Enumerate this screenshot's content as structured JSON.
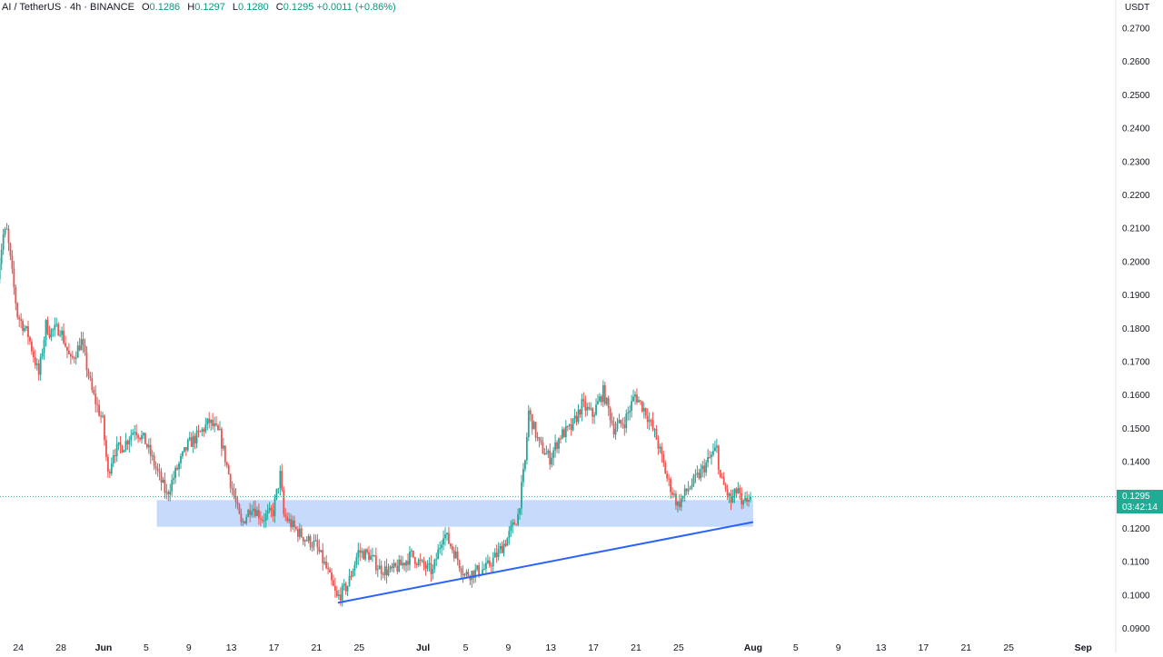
{
  "legend": {
    "symbol": "AI / TetherUS · 4h · BINANCE",
    "open_label": "O",
    "open": "0.1286",
    "high_label": "H",
    "high": "0.1297",
    "low_label": "L",
    "low": "0.1280",
    "close_label": "C",
    "close": "0.1295",
    "change": "+0.0011 (+0.86%)"
  },
  "price_scale": {
    "currency": "USDT",
    "last_price": "0.1295",
    "countdown": "03:42:14"
  },
  "colors": {
    "up": "#26a69a",
    "down": "#ef5350",
    "zone": "#bcd4fb",
    "trendline": "#2962ff",
    "last_price_tag": "#22ab94"
  },
  "chart_data": {
    "type": "candlestick",
    "symbol": "AI / TetherUS",
    "interval": "4h",
    "exchange": "BINANCE",
    "ylim": [
      0.09,
      0.275
    ],
    "y_ticks": [
      "0.2700",
      "0.2600",
      "0.2500",
      "0.2400",
      "0.2300",
      "0.2200",
      "0.2100",
      "0.2000",
      "0.1900",
      "0.1800",
      "0.1700",
      "0.1600",
      "0.1500",
      "0.1400",
      "0.1300",
      "0.1200",
      "0.1100",
      "0.1000",
      "0.0900"
    ],
    "x_ticks": [
      {
        "label": "24",
        "date": "2024-05-24"
      },
      {
        "label": "28",
        "date": "2024-05-28"
      },
      {
        "label": "Jun",
        "date": "2024-06-01"
      },
      {
        "label": "5",
        "date": "2024-06-05"
      },
      {
        "label": "9",
        "date": "2024-06-09"
      },
      {
        "label": "13",
        "date": "2024-06-13"
      },
      {
        "label": "17",
        "date": "2024-06-17"
      },
      {
        "label": "21",
        "date": "2024-06-21"
      },
      {
        "label": "25",
        "date": "2024-06-25"
      },
      {
        "label": "Jul",
        "date": "2024-07-01"
      },
      {
        "label": "5",
        "date": "2024-07-05"
      },
      {
        "label": "9",
        "date": "2024-07-09"
      },
      {
        "label": "13",
        "date": "2024-07-13"
      },
      {
        "label": "17",
        "date": "2024-07-17"
      },
      {
        "label": "21",
        "date": "2024-07-21"
      },
      {
        "label": "25",
        "date": "2024-07-25"
      },
      {
        "label": "Aug",
        "date": "2024-08-01"
      },
      {
        "label": "5",
        "date": "2024-08-05"
      },
      {
        "label": "9",
        "date": "2024-08-09"
      },
      {
        "label": "13",
        "date": "2024-08-13"
      },
      {
        "label": "17",
        "date": "2024-08-17"
      },
      {
        "label": "21",
        "date": "2024-08-21"
      },
      {
        "label": "25",
        "date": "2024-08-25"
      },
      {
        "label": "Sep",
        "date": "2024-09-01"
      }
    ],
    "price_path": [
      {
        "date": "2024-05-22",
        "price": 0.193
      },
      {
        "date": "2024-05-22T16:00",
        "price": 0.208
      },
      {
        "date": "2024-05-23",
        "price": 0.209
      },
      {
        "date": "2024-05-23T16:00",
        "price": 0.192
      },
      {
        "date": "2024-05-24",
        "price": 0.184
      },
      {
        "date": "2024-05-25",
        "price": 0.178
      },
      {
        "date": "2024-05-26",
        "price": 0.166
      },
      {
        "date": "2024-05-26T16:00",
        "price": 0.181
      },
      {
        "date": "2024-05-27",
        "price": 0.179
      },
      {
        "date": "2024-05-28",
        "price": 0.18
      },
      {
        "date": "2024-05-29",
        "price": 0.17
      },
      {
        "date": "2024-05-30",
        "price": 0.176
      },
      {
        "date": "2024-05-31",
        "price": 0.161
      },
      {
        "date": "2024-06-01",
        "price": 0.152
      },
      {
        "date": "2024-06-01T12:00",
        "price": 0.136
      },
      {
        "date": "2024-06-02",
        "price": 0.143
      },
      {
        "date": "2024-06-03",
        "price": 0.145
      },
      {
        "date": "2024-06-04",
        "price": 0.15
      },
      {
        "date": "2024-06-05",
        "price": 0.146
      },
      {
        "date": "2024-06-06",
        "price": 0.138
      },
      {
        "date": "2024-06-07",
        "price": 0.13
      },
      {
        "date": "2024-06-08",
        "price": 0.138
      },
      {
        "date": "2024-06-09",
        "price": 0.145
      },
      {
        "date": "2024-06-10",
        "price": 0.148
      },
      {
        "date": "2024-06-11",
        "price": 0.152
      },
      {
        "date": "2024-06-12",
        "price": 0.148
      },
      {
        "date": "2024-06-13",
        "price": 0.134
      },
      {
        "date": "2024-06-14",
        "price": 0.121
      },
      {
        "date": "2024-06-15",
        "price": 0.127
      },
      {
        "date": "2024-06-16",
        "price": 0.123
      },
      {
        "date": "2024-06-17",
        "price": 0.125
      },
      {
        "date": "2024-06-17T16:00",
        "price": 0.136
      },
      {
        "date": "2024-06-18",
        "price": 0.124
      },
      {
        "date": "2024-06-19",
        "price": 0.12
      },
      {
        "date": "2024-06-20",
        "price": 0.117
      },
      {
        "date": "2024-06-21",
        "price": 0.115
      },
      {
        "date": "2024-06-22",
        "price": 0.108
      },
      {
        "date": "2024-06-23",
        "price": 0.099
      },
      {
        "date": "2024-06-24",
        "price": 0.103
      },
      {
        "date": "2024-06-25",
        "price": 0.113
      },
      {
        "date": "2024-06-26",
        "price": 0.112
      },
      {
        "date": "2024-06-27",
        "price": 0.108
      },
      {
        "date": "2024-06-28",
        "price": 0.107
      },
      {
        "date": "2024-06-29",
        "price": 0.109
      },
      {
        "date": "2024-06-30",
        "price": 0.112
      },
      {
        "date": "2024-07-01",
        "price": 0.109
      },
      {
        "date": "2024-07-02",
        "price": 0.107
      },
      {
        "date": "2024-07-03",
        "price": 0.119
      },
      {
        "date": "2024-07-04",
        "price": 0.113
      },
      {
        "date": "2024-07-05",
        "price": 0.106
      },
      {
        "date": "2024-07-06",
        "price": 0.107
      },
      {
        "date": "2024-07-07",
        "price": 0.108
      },
      {
        "date": "2024-07-08",
        "price": 0.112
      },
      {
        "date": "2024-07-09",
        "price": 0.117
      },
      {
        "date": "2024-07-10",
        "price": 0.124
      },
      {
        "date": "2024-07-10T16:00",
        "price": 0.14
      },
      {
        "date": "2024-07-11",
        "price": 0.155
      },
      {
        "date": "2024-07-12",
        "price": 0.145
      },
      {
        "date": "2024-07-13",
        "price": 0.141
      },
      {
        "date": "2024-07-14",
        "price": 0.148
      },
      {
        "date": "2024-07-15",
        "price": 0.15
      },
      {
        "date": "2024-07-16",
        "price": 0.157
      },
      {
        "date": "2024-07-17",
        "price": 0.154
      },
      {
        "date": "2024-07-18",
        "price": 0.161
      },
      {
        "date": "2024-07-19",
        "price": 0.15
      },
      {
        "date": "2024-07-20",
        "price": 0.152
      },
      {
        "date": "2024-07-21",
        "price": 0.16
      },
      {
        "date": "2024-07-22",
        "price": 0.155
      },
      {
        "date": "2024-07-23",
        "price": 0.147
      },
      {
        "date": "2024-07-24",
        "price": 0.135
      },
      {
        "date": "2024-07-25",
        "price": 0.127
      },
      {
        "date": "2024-07-26",
        "price": 0.132
      },
      {
        "date": "2024-07-27",
        "price": 0.136
      },
      {
        "date": "2024-07-28",
        "price": 0.141
      },
      {
        "date": "2024-07-28T16:00",
        "price": 0.144
      },
      {
        "date": "2024-07-29",
        "price": 0.135
      },
      {
        "date": "2024-07-30",
        "price": 0.128
      },
      {
        "date": "2024-07-30T16:00",
        "price": 0.132
      },
      {
        "date": "2024-07-31",
        "price": 0.126
      },
      {
        "date": "2024-07-31T16:00",
        "price": 0.1295
      }
    ],
    "support_zone": {
      "from": "2024-06-06",
      "to": "2024-08-01",
      "price_low": 0.1205,
      "price_high": 0.1285
    },
    "trendline": {
      "from": {
        "date": "2024-06-23",
        "price": 0.0977
      },
      "to": {
        "date": "2024-08-01",
        "price": 0.1219
      }
    },
    "last_price": 0.1295
  }
}
